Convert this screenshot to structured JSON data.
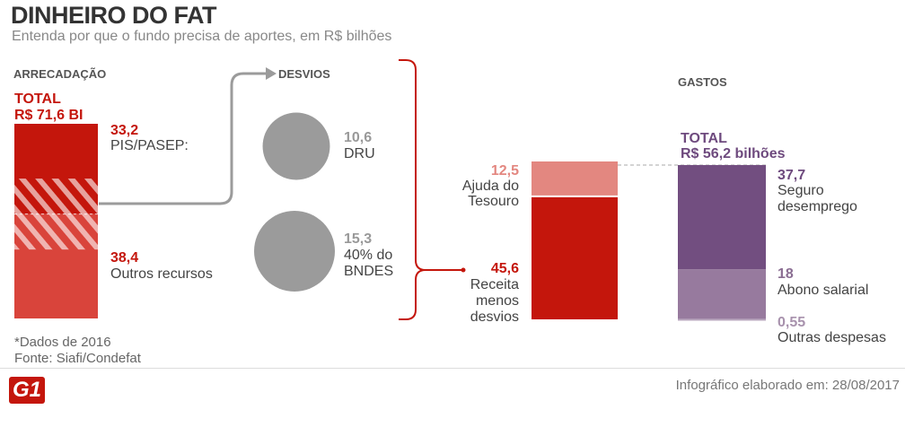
{
  "header": {
    "title": "DINHEIRO DO FAT",
    "subtitle": "Entenda por que o fundo precisa de aportes, em R$ bilhões"
  },
  "sections": {
    "arrecadacao": "ARRECADAÇÃO",
    "desvios": "DESVIOS",
    "gastos": "GASTOS"
  },
  "arrecadacao": {
    "total_label": "TOTAL",
    "total_value": "R$ 71,6 BI",
    "pis_value": "33,2",
    "pis_label": "PIS/PASEP:",
    "outros_value": "38,4",
    "outros_label": "Outros recursos"
  },
  "desvios": {
    "dru_value": "10,6",
    "dru_label": "DRU",
    "bndes_value": "15,3",
    "bndes_label_1": "40% do",
    "bndes_label_2": "BNDES"
  },
  "receita": {
    "ajuda_value": "12,5",
    "ajuda_label_1": "Ajuda do",
    "ajuda_label_2": "Tesouro",
    "receita_value": "45,6",
    "receita_label_1": "Receita",
    "receita_label_2": "menos",
    "receita_label_3": "desvios"
  },
  "gastos": {
    "total_label": "TOTAL",
    "total_value": "R$ 56,2 bilhões",
    "seguro_value": "37,7",
    "seguro_label_1": "Seguro",
    "seguro_label_2": "desemprego",
    "abono_value": "18",
    "abono_label": "Abono salarial",
    "outras_value": "0,55",
    "outras_label": "Outras despesas"
  },
  "footer": {
    "note": "*Dados de 2016",
    "source": "Fonte: Siafi/Condefat",
    "logo": "G1",
    "credit": "Infográfico elaborado em: 28/08/2017"
  },
  "colors": {
    "red": "#c4160c",
    "red_light": "#d9443b",
    "pink": "#e38780",
    "gray": "#9b9b9b",
    "purple": "#724e80",
    "purple_mid": "#977a9e",
    "purple_light": "#b9a6bd"
  },
  "chart_data": [
    {
      "type": "bar",
      "name": "arrecadacao",
      "categories": [
        "PIS/PASEP",
        "Outros recursos"
      ],
      "values": [
        33.2,
        38.4
      ],
      "total": 71.6,
      "stacked": true,
      "hatched_overlap": 26.1
    },
    {
      "type": "bubble",
      "name": "desvios",
      "categories": [
        "DRU",
        "40% do BNDES"
      ],
      "values": [
        10.6,
        15.3
      ]
    },
    {
      "type": "bar",
      "name": "receita",
      "categories": [
        "Ajuda do Tesouro",
        "Receita menos desvios"
      ],
      "values": [
        12.5,
        45.6
      ],
      "stacked": true
    },
    {
      "type": "bar",
      "name": "gastos",
      "categories": [
        "Seguro desemprego",
        "Abono salarial",
        "Outras despesas"
      ],
      "values": [
        37.7,
        18,
        0.55
      ],
      "total": 56.2,
      "stacked": true
    }
  ]
}
